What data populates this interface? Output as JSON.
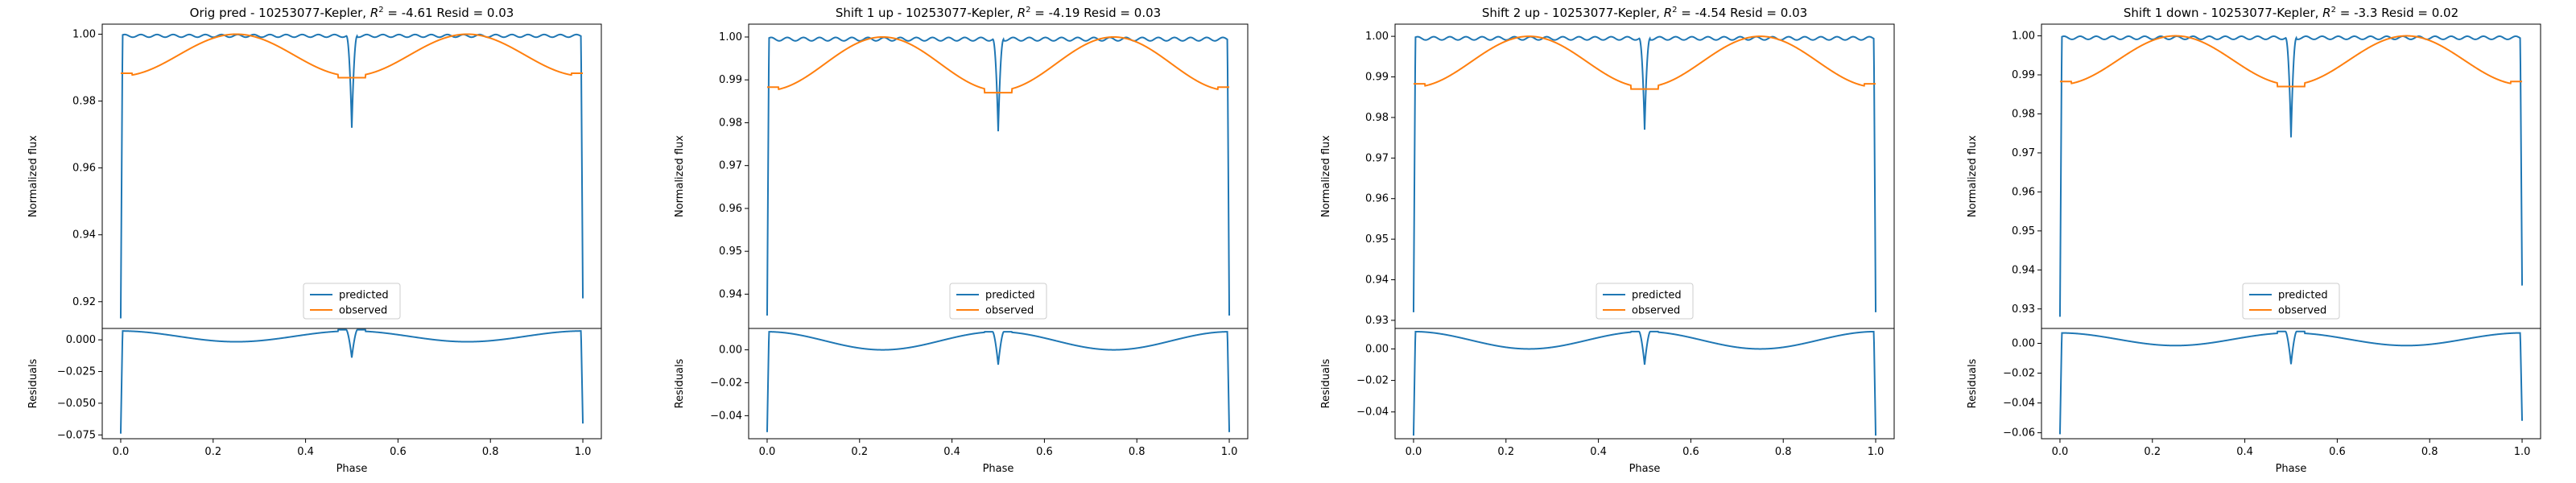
{
  "chart_data": [
    {
      "type": "line",
      "title": "Orig pred - 10253077-Kepler, $R^2 = $-4.61 Resid = 0.03",
      "top": {
        "ylabel": "Normalized flux",
        "ylim": [
          0.912,
          1.003
        ],
        "yticks": [
          0.92,
          0.94,
          0.96,
          0.98,
          1.0
        ],
        "ytick_labels": [
          "0.92",
          "0.94",
          "0.96",
          "0.98",
          "1.00"
        ],
        "legend": {
          "placement": "lower center",
          "entries": [
            "predicted",
            "observed"
          ]
        },
        "series": [
          {
            "name": "predicted",
            "color": "#1f77b4",
            "x_start": 0.0,
            "x_end": 1.0,
            "profile": {
              "level": 0.9995,
              "ingress_low": 0.915,
              "egress_low": 0.921,
              "dip_phase": 0.5,
              "dip_low": 0.972
            }
          },
          {
            "name": "observed",
            "color": "#ff7f0e",
            "x_start": 0.0,
            "x_end": 1.0,
            "profile": {
              "peak": 1.0,
              "edge": 0.9885,
              "mid": 0.9875
            }
          }
        ]
      },
      "bottom": {
        "xlabel": "Phase",
        "ylabel": "Residuals",
        "ylim": [
          -0.078,
          0.009
        ],
        "yticks": [
          0.0,
          -0.025,
          -0.05,
          -0.075
        ],
        "ytick_labels": [
          "0.000",
          "−0.025",
          "−0.050",
          "−0.075"
        ],
        "xlim": [
          -0.04,
          1.04
        ],
        "xticks": [
          0.0,
          0.2,
          0.4,
          0.6,
          0.8,
          1.0
        ],
        "xtick_labels": [
          "0.0",
          "0.2",
          "0.4",
          "0.6",
          "0.8",
          "1.0"
        ],
        "residual_profile": {
          "edge": 0.007,
          "low": -0.0015,
          "spike_high": 0.008,
          "dip_low": -0.014,
          "start_low": -0.074,
          "end_low": -0.066
        }
      }
    },
    {
      "type": "line",
      "title": "Shift 1 up - 10253077-Kepler, $R^2 = $-4.19 Resid = 0.03",
      "top": {
        "ylabel": "Normalized flux",
        "ylim": [
          0.932,
          1.003
        ],
        "yticks": [
          0.94,
          0.95,
          0.96,
          0.97,
          0.98,
          0.99,
          1.0
        ],
        "ytick_labels": [
          "0.94",
          "0.95",
          "0.96",
          "0.97",
          "0.98",
          "0.99",
          "1.00"
        ],
        "legend": {
          "placement": "lower center",
          "entries": [
            "predicted",
            "observed"
          ]
        },
        "series": [
          {
            "name": "predicted",
            "color": "#1f77b4",
            "x_start": 0.0,
            "x_end": 1.0,
            "profile": {
              "level": 0.9995,
              "ingress_low": 0.935,
              "egress_low": 0.935,
              "dip_phase": 0.5,
              "dip_low": 0.978
            }
          },
          {
            "name": "observed",
            "color": "#ff7f0e",
            "x_start": 0.0,
            "x_end": 1.0,
            "profile": {
              "peak": 1.0,
              "edge": 0.9885,
              "mid": 0.9875
            }
          }
        ]
      },
      "bottom": {
        "xlabel": "Phase",
        "ylabel": "Residuals",
        "ylim": [
          -0.054,
          0.013
        ],
        "yticks": [
          0.0,
          -0.02,
          -0.04
        ],
        "ytick_labels": [
          "0.00",
          "−0.02",
          "−0.04"
        ],
        "xlim": [
          -0.04,
          1.04
        ],
        "xticks": [
          0.0,
          0.2,
          0.4,
          0.6,
          0.8,
          1.0
        ],
        "xtick_labels": [
          "0.0",
          "0.2",
          "0.4",
          "0.6",
          "0.8",
          "1.0"
        ],
        "residual_profile": {
          "edge": 0.011,
          "low": 0.0,
          "spike_high": 0.011,
          "dip_low": -0.009,
          "start_low": -0.05,
          "end_low": -0.05
        }
      }
    },
    {
      "type": "line",
      "title": "Shift 2 up - 10253077-Kepler, $R^2 = $-4.54 Resid = 0.03",
      "top": {
        "ylabel": "Normalized flux",
        "ylim": [
          0.928,
          1.003
        ],
        "yticks": [
          0.93,
          0.94,
          0.95,
          0.96,
          0.97,
          0.98,
          0.99,
          1.0
        ],
        "ytick_labels": [
          "0.93",
          "0.94",
          "0.95",
          "0.96",
          "0.97",
          "0.98",
          "0.99",
          "1.00"
        ],
        "legend": {
          "placement": "lower center",
          "entries": [
            "predicted",
            "observed"
          ]
        },
        "series": [
          {
            "name": "predicted",
            "color": "#1f77b4",
            "x_start": 0.0,
            "x_end": 1.0,
            "profile": {
              "level": 0.9995,
              "ingress_low": 0.932,
              "egress_low": 0.932,
              "dip_phase": 0.5,
              "dip_low": 0.977
            }
          },
          {
            "name": "observed",
            "color": "#ff7f0e",
            "x_start": 0.0,
            "x_end": 1.0,
            "profile": {
              "peak": 1.0,
              "edge": 0.9885,
              "mid": 0.9875
            }
          }
        ]
      },
      "bottom": {
        "xlabel": "Phase",
        "ylabel": "Residuals",
        "ylim": [
          -0.057,
          0.013
        ],
        "yticks": [
          0.0,
          -0.02,
          -0.04
        ],
        "ytick_labels": [
          "0.00",
          "−0.02",
          "−0.04"
        ],
        "xlim": [
          -0.04,
          1.04
        ],
        "xticks": [
          0.0,
          0.2,
          0.4,
          0.6,
          0.8,
          1.0
        ],
        "xtick_labels": [
          "0.0",
          "0.2",
          "0.4",
          "0.6",
          "0.8",
          "1.0"
        ],
        "residual_profile": {
          "edge": 0.011,
          "low": 0.0,
          "spike_high": 0.011,
          "dip_low": -0.01,
          "start_low": -0.055,
          "end_low": -0.055
        }
      }
    },
    {
      "type": "line",
      "title": "Shift 1 down - 10253077-Kepler, $R^2 = $-3.3 Resid = 0.02",
      "top": {
        "ylabel": "Normalized flux",
        "ylim": [
          0.925,
          1.003
        ],
        "yticks": [
          0.93,
          0.94,
          0.95,
          0.96,
          0.97,
          0.98,
          0.99,
          1.0
        ],
        "ytick_labels": [
          "0.93",
          "0.94",
          "0.95",
          "0.96",
          "0.97",
          "0.98",
          "0.99",
          "1.00"
        ],
        "legend": {
          "placement": "lower center",
          "entries": [
            "predicted",
            "observed"
          ]
        },
        "series": [
          {
            "name": "predicted",
            "color": "#1f77b4",
            "x_start": 0.0,
            "x_end": 1.0,
            "profile": {
              "level": 0.9995,
              "ingress_low": 0.928,
              "egress_low": 0.936,
              "dip_phase": 0.5,
              "dip_low": 0.974
            }
          },
          {
            "name": "observed",
            "color": "#ff7f0e",
            "x_start": 0.0,
            "x_end": 1.0,
            "profile": {
              "peak": 1.0,
              "edge": 0.9885,
              "mid": 0.9875
            }
          }
        ]
      },
      "bottom": {
        "xlabel": "Phase",
        "ylabel": "Residuals",
        "ylim": [
          -0.064,
          0.01
        ],
        "yticks": [
          0.0,
          -0.02,
          -0.04,
          -0.06
        ],
        "ytick_labels": [
          "0.00",
          "−0.02",
          "−0.04",
          "−0.06"
        ],
        "xlim": [
          -0.04,
          1.04
        ],
        "xticks": [
          0.0,
          0.2,
          0.4,
          0.6,
          0.8,
          1.0
        ],
        "xtick_labels": [
          "0.0",
          "0.2",
          "0.4",
          "0.6",
          "0.8",
          "1.0"
        ],
        "residual_profile": {
          "edge": 0.007,
          "low": -0.0015,
          "spike_high": 0.008,
          "dip_low": -0.014,
          "start_low": -0.061,
          "end_low": -0.052
        }
      }
    }
  ]
}
